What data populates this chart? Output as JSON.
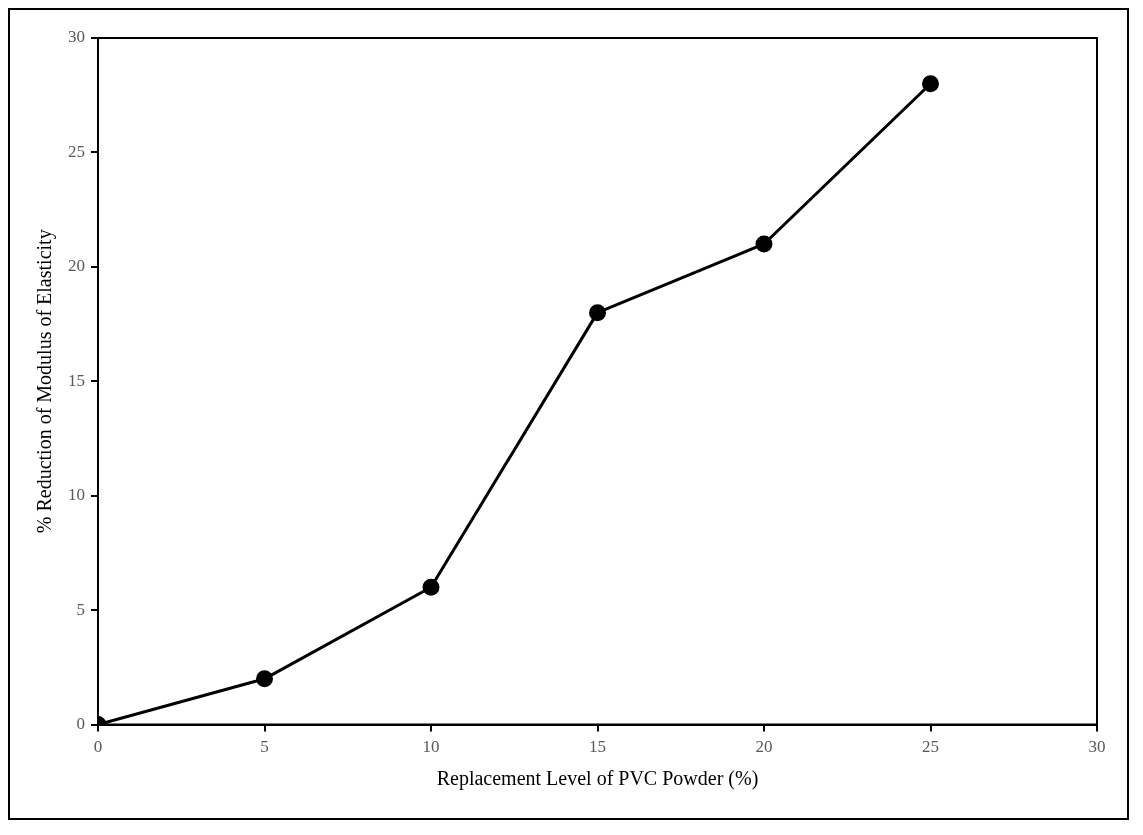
{
  "chart_data": {
    "type": "line",
    "xlabel": "Replacement Level of PVC Powder (%)",
    "ylabel": "% Reduction of Modulus of Elasticity",
    "x": [
      0,
      5,
      10,
      15,
      20,
      25
    ],
    "values": [
      0,
      2,
      6,
      18,
      21,
      28
    ],
    "color": "#000000",
    "xlim": [
      0,
      30
    ],
    "xticks": [
      0,
      5,
      10,
      15,
      20,
      25,
      30
    ],
    "ylim": [
      0,
      30
    ],
    "yticks": [
      0,
      5,
      10,
      15,
      20,
      25,
      30
    ],
    "marker": "circle",
    "line_style": "solid"
  }
}
